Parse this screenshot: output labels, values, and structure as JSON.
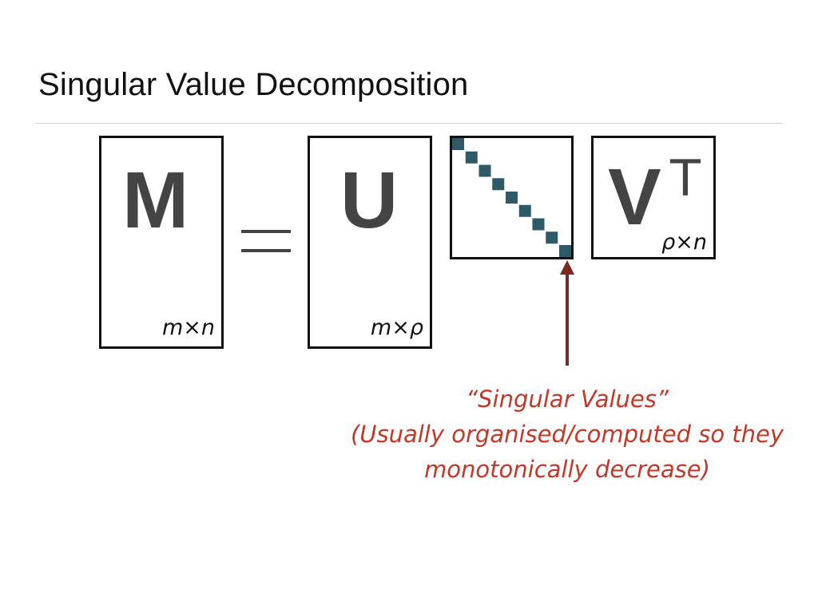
{
  "slide": {
    "title": "Singular Value Decomposition"
  },
  "equation": {
    "lhs": {
      "letter": "M",
      "dimension": "m×n"
    },
    "equals": "=",
    "u_matrix": {
      "letter": "U",
      "dimension": "m×ρ"
    },
    "sigma_matrix": {
      "diagonal_cells": 9
    },
    "vt_matrix": {
      "letter": "V",
      "superscript": "T",
      "dimension": "ρ×n"
    }
  },
  "annotation": {
    "line1": "“Singular Values”",
    "line2": "(Usually organised/computed so they",
    "line3": "monotonically decrease)"
  },
  "colors": {
    "diagonal": "#2e5a67",
    "arrow": "#7a2a22",
    "annotation_text": "#c0392b",
    "matrix_letters": "#444444"
  }
}
